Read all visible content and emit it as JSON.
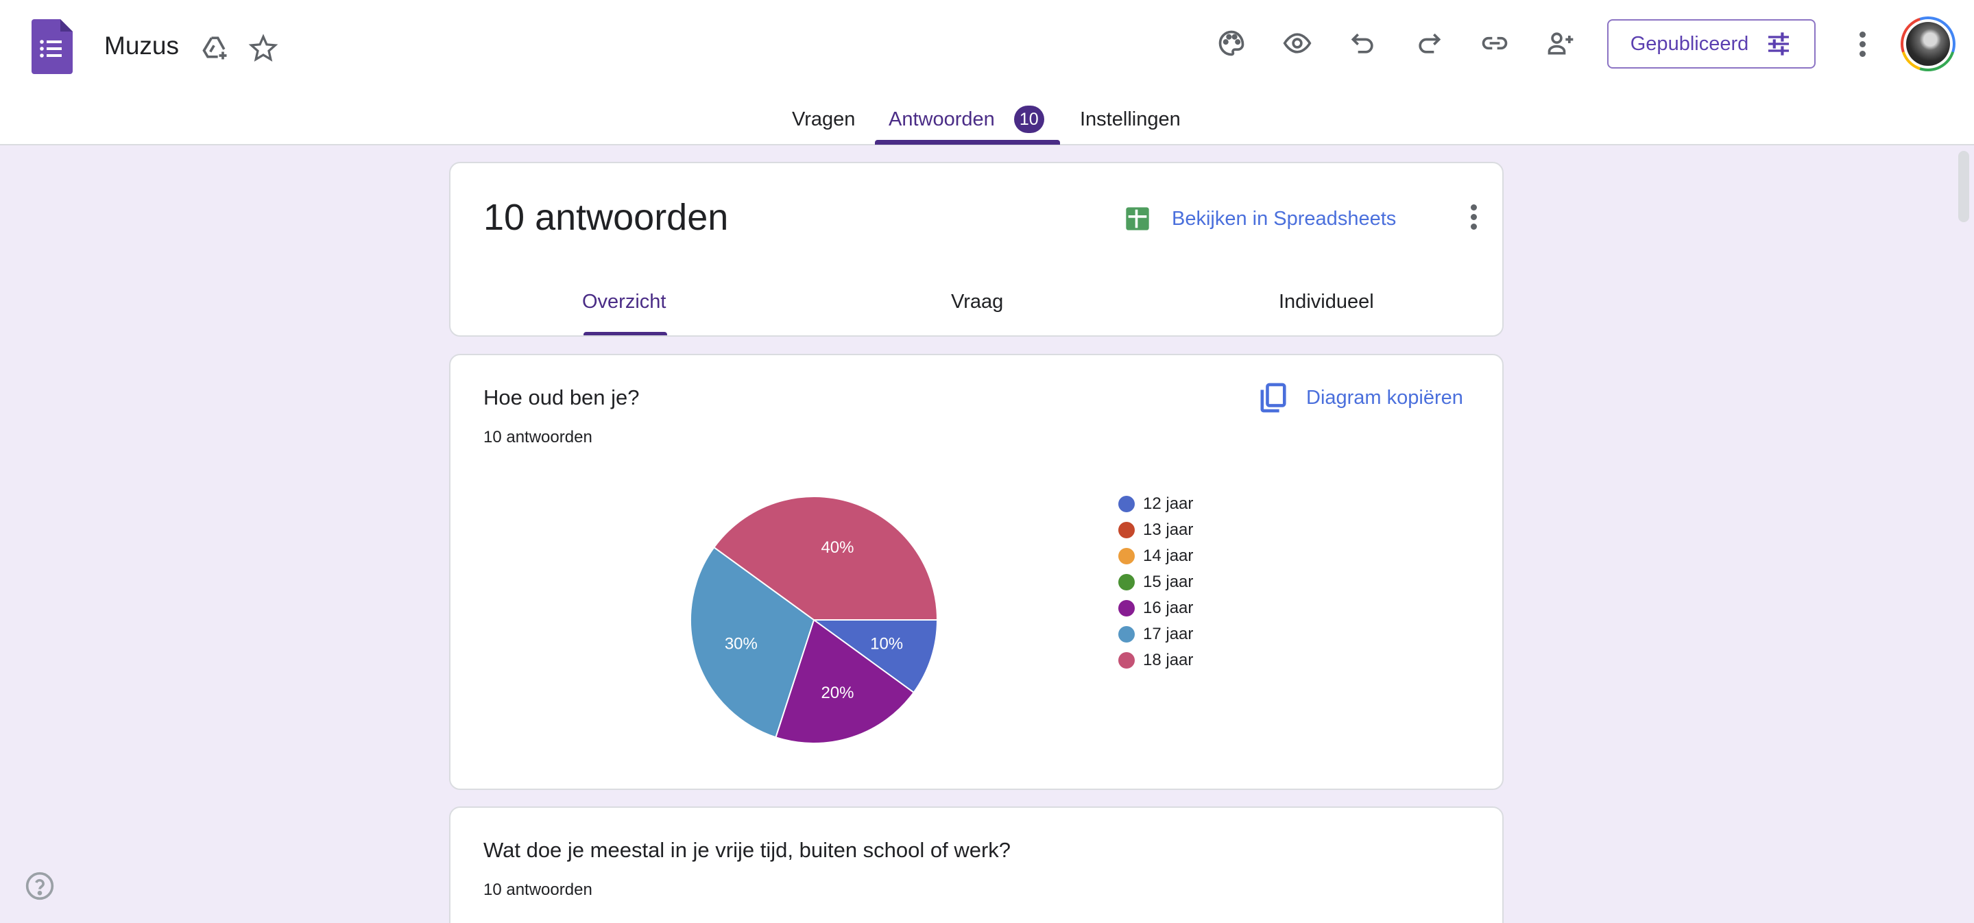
{
  "header": {
    "app_icon": "google-forms-icon",
    "doc_title": "Muzus",
    "title_icons": [
      "add-to-drive-icon",
      "star-icon"
    ],
    "toolbar_icons": [
      "palette-icon",
      "preview-eye-icon",
      "undo-icon",
      "redo-icon",
      "link-icon",
      "add-collaborator-icon"
    ],
    "publish_button": "Gepubliceerd",
    "publish_icon": "tune-sliders-icon",
    "more_icon": "more-vert-icon",
    "avatar": "user-avatar"
  },
  "tabs": [
    {
      "label": "Vragen",
      "active": false
    },
    {
      "label": "Antwoorden",
      "active": true,
      "badge": "10"
    },
    {
      "label": "Instellingen",
      "active": false
    }
  ],
  "summary": {
    "title": "10 antwoorden",
    "sheets_link": "Bekijken in Spreadsheets",
    "subtabs": [
      {
        "label": "Overzicht",
        "active": true
      },
      {
        "label": "Vraag",
        "active": false
      },
      {
        "label": "Individueel",
        "active": false
      }
    ]
  },
  "questions": [
    {
      "title": "Hoe oud ben je?",
      "count": "10 antwoorden",
      "copy_label": "Diagram kopiëren"
    },
    {
      "title": "Wat doe je meestal in je vrije tijd, buiten school of werk?",
      "count": "10 antwoorden"
    }
  ],
  "colors": {
    "accent": "#4a2c86",
    "link": "#4a6fdc",
    "page_bg": "#f0ebf8"
  },
  "chart_data": {
    "type": "pie",
    "title": "Hoe oud ben je?",
    "categories": [
      "12 jaar",
      "13 jaar",
      "14 jaar",
      "15 jaar",
      "16 jaar",
      "17 jaar",
      "18 jaar"
    ],
    "values": [
      10,
      0,
      0,
      0,
      20,
      30,
      40
    ],
    "labels": [
      "10%",
      "",
      "",
      "",
      "20%",
      "30%",
      "40%"
    ],
    "colors": [
      "#4d69c8",
      "#c5482b",
      "#ec9d3b",
      "#4a9233",
      "#871d92",
      "#5697c4",
      "#c45275"
    ],
    "legend_position": "right",
    "total_responses": 10
  }
}
